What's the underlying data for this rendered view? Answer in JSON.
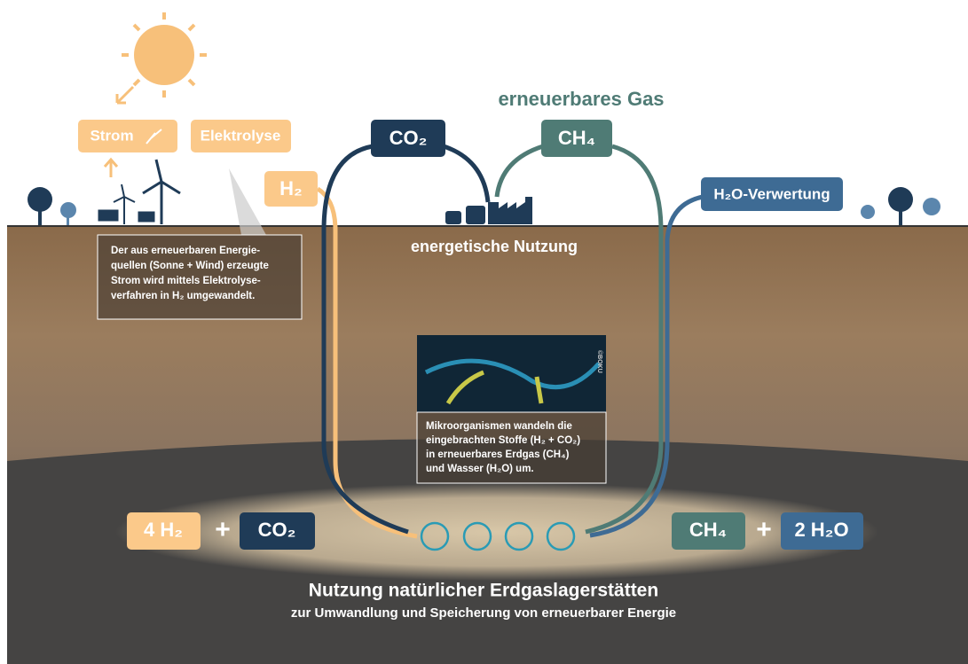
{
  "header": {
    "title": "erneuerbares Gas"
  },
  "boxes": {
    "strom": "Strom",
    "elektrolyse": "Elektrolyse",
    "h2": "H₂",
    "co2": "CO₂",
    "ch4": "CH₄",
    "h2o": "H₂O-Verwertung"
  },
  "usage": "energetische Nutzung",
  "info_electrolysis": [
    "Der aus erneuerbaren Energie-",
    "quellen (Sonne + Wind) erzeugte",
    "Strom wird mittels Elektrolyse-",
    "verfahren in H₂ umgewandelt."
  ],
  "photo_credit": "©BOKU",
  "info_microbes": [
    "Mikroorganismen wandeln die",
    "eingebrachten Stoffe (H₂ + CO₂)",
    "in erneuerbares Erdgas (CH₄)",
    "und Wasser (H₂O) um."
  ],
  "equation": {
    "left": [
      "4 H₂",
      "+",
      "CO₂"
    ],
    "right": [
      "CH₄",
      "+",
      "2 H₂O"
    ]
  },
  "footer": {
    "title": "Nutzung natürlicher Erdgaslagerstätten",
    "subtitle": "zur Umwandlung und Speicherung von erneuerbarer Energie"
  }
}
